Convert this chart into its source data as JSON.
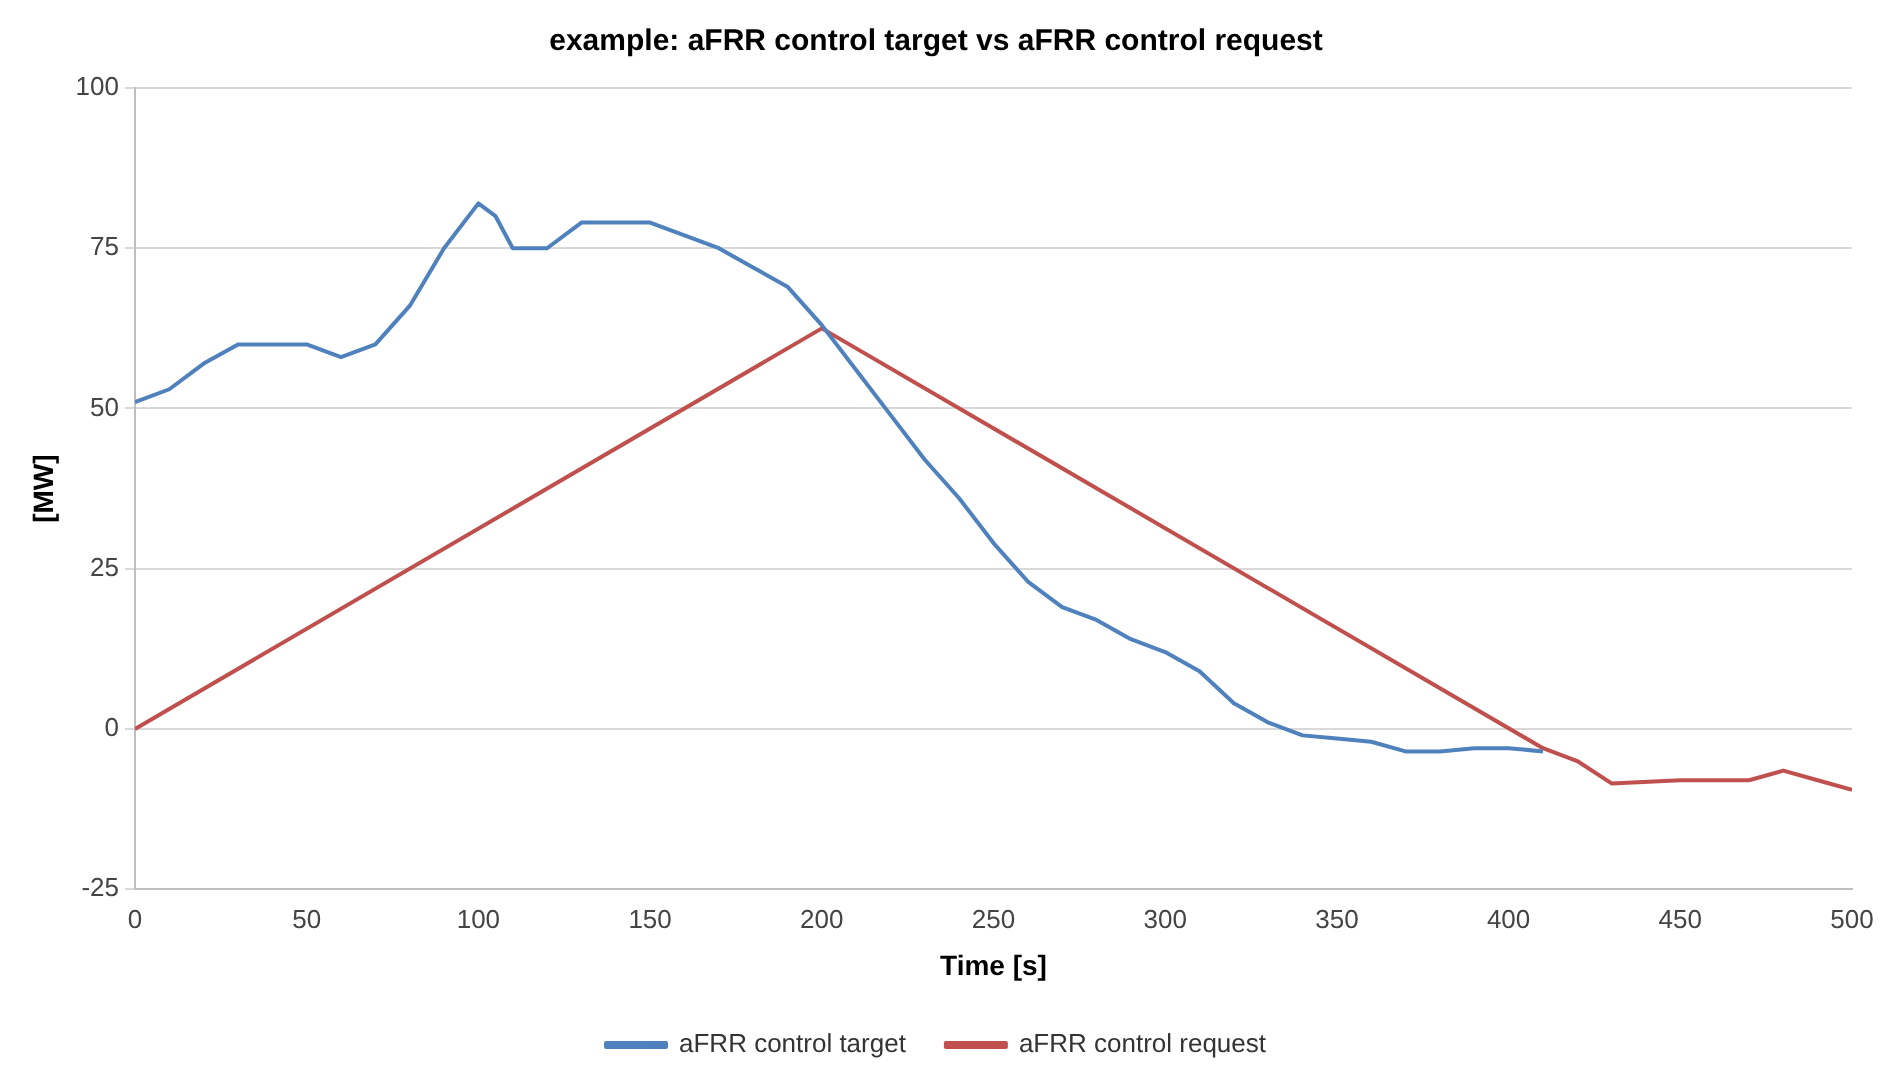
{
  "chart_data": {
    "type": "line",
    "title": "example: aFRR control target vs aFRR control request",
    "xlabel": "Time [s]",
    "ylabel": "[MW]",
    "xlim": [
      0,
      500
    ],
    "xticks": [
      0,
      50,
      100,
      150,
      200,
      250,
      300,
      350,
      400,
      450,
      500
    ],
    "ylim": [
      -25,
      100
    ],
    "yticks": [
      -25,
      0,
      25,
      50,
      75,
      100
    ],
    "grid": "y",
    "legend": "bottom",
    "marker": "none",
    "line_style": "solid",
    "series": [
      {
        "name": "aFRR control target",
        "color": "#4f81bd",
        "x": [
          0,
          10,
          20,
          30,
          50,
          60,
          70,
          80,
          90,
          100,
          105,
          110,
          120,
          130,
          150,
          160,
          170,
          180,
          190,
          200,
          210,
          220,
          230,
          240,
          250,
          260,
          270,
          280,
          290,
          300,
          310,
          320,
          330,
          340,
          350,
          360,
          370,
          380,
          390,
          400,
          410
        ],
        "values": [
          51,
          53,
          57,
          60,
          60,
          58,
          60,
          66,
          75,
          82,
          80,
          75,
          75,
          79,
          79,
          77,
          75,
          72,
          69,
          63,
          56,
          49,
          42,
          36,
          29,
          23,
          19,
          17,
          14,
          12,
          9,
          4,
          1,
          -1,
          -1.5,
          -2,
          -3.5,
          -3.5,
          -3,
          -3,
          -3.5
        ]
      },
      {
        "name": "aFRR control request",
        "color": "#c0504d",
        "x": [
          0,
          200,
          410,
          420,
          430,
          450,
          470,
          480,
          490,
          500
        ],
        "values": [
          0,
          62.5,
          -3,
          -5,
          -8.5,
          -8,
          -8,
          -6.5,
          -8,
          -9.5
        ]
      }
    ]
  }
}
